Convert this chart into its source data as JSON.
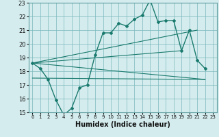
{
  "xlabel": "Humidex (Indice chaleur)",
  "bg_color": "#d4ecee",
  "grid_color": "#7ab8bb",
  "line_color": "#1a7a6e",
  "xlim": [
    -0.5,
    23.5
  ],
  "ylim": [
    15,
    23
  ],
  "xticks": [
    0,
    1,
    2,
    3,
    4,
    5,
    6,
    7,
    8,
    9,
    10,
    11,
    12,
    13,
    14,
    15,
    16,
    17,
    18,
    19,
    20,
    21,
    22,
    23
  ],
  "yticks": [
    15,
    16,
    17,
    18,
    19,
    20,
    21,
    22,
    23
  ],
  "line1_x": [
    0,
    1,
    2,
    3,
    4,
    5,
    6,
    7,
    8,
    9,
    10,
    11,
    12,
    13,
    14,
    15,
    16,
    17,
    18,
    19,
    20,
    21,
    22
  ],
  "line1_y": [
    18.6,
    18.2,
    17.4,
    15.9,
    14.8,
    15.3,
    16.8,
    17.0,
    19.2,
    20.8,
    20.8,
    21.5,
    21.3,
    21.8,
    22.1,
    23.2,
    21.6,
    21.7,
    21.7,
    19.5,
    21.0,
    18.8,
    18.2
  ],
  "line2_x": [
    0,
    21
  ],
  "line2_y": [
    18.6,
    21.0
  ],
  "line3_x": [
    0,
    19
  ],
  "line3_y": [
    18.6,
    19.5
  ],
  "line4_x": [
    0,
    22
  ],
  "line4_y": [
    17.5,
    17.4
  ],
  "line5_x": [
    0,
    22
  ],
  "line5_y": [
    18.6,
    17.4
  ]
}
